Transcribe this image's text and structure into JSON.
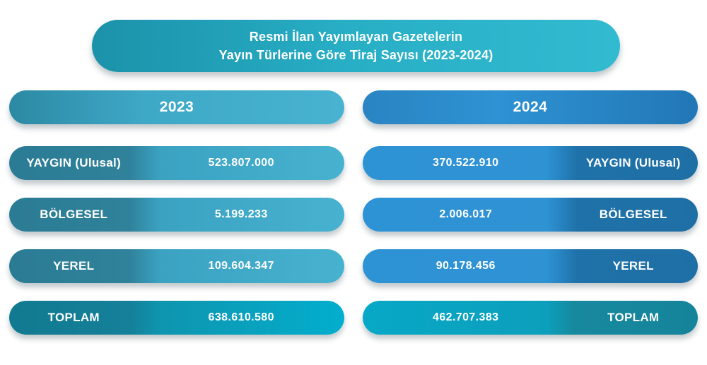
{
  "title": {
    "line1": "Resmi İlan Yayımlayan Gazetelerin",
    "line2": "Yayın Türlerine Göre Tiraj Sayısı (2023-2024)"
  },
  "columns": [
    {
      "year": "2023",
      "side": "left",
      "rows": [
        {
          "label": "YAYGIN (Ulusal)",
          "value": "523.807.000"
        },
        {
          "label": "BÖLGESEL",
          "value": "5.199.233"
        },
        {
          "label": "YEREL",
          "value": "109.604.347"
        },
        {
          "label": "TOPLAM",
          "value": "638.610.580"
        }
      ]
    },
    {
      "year": "2024",
      "side": "right",
      "rows": [
        {
          "label": "YAYGIN (Ulusal)",
          "value": "370.522.910"
        },
        {
          "label": "BÖLGESEL",
          "value": "2.006.017"
        },
        {
          "label": "YEREL",
          "value": "90.178.456"
        },
        {
          "label": "TOPLAM",
          "value": "462.707.383"
        }
      ]
    }
  ],
  "colors": {
    "title_teal": "#28AFC6",
    "teal_dark": "#2A7B93",
    "teal_light": "#47B2D0",
    "cyan_bright": "#03AECE",
    "teal_total_dark": "#117A91",
    "blue_light": "#2E92D3",
    "blue_dark": "#1E6FA5",
    "text": "#FFFFFF",
    "background": "#FFFFFF"
  },
  "chart_data": {
    "type": "table",
    "title": "Resmi İlan Yayımlayan Gazetelerin Yayın Türlerine Göre Tiraj Sayısı (2023-2024)",
    "categories": [
      "YAYGIN (Ulusal)",
      "BÖLGESEL",
      "YEREL",
      "TOPLAM"
    ],
    "series": [
      {
        "name": "2023",
        "values": [
          523807000,
          5199233,
          109604347,
          638610580
        ]
      },
      {
        "name": "2024",
        "values": [
          370522910,
          2006017,
          90178456,
          462707383
        ]
      }
    ],
    "layout": "two mirrored columns, labels adjacent to center-facing edges omitted; left column labels on left, right column labels on right"
  }
}
